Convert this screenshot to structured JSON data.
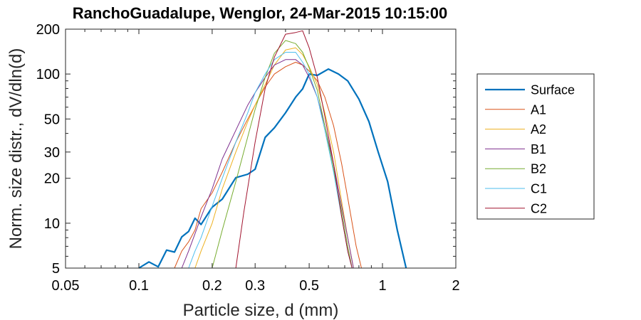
{
  "chart_data": {
    "type": "line",
    "title": "RanchoGuadalupe, Wenglor, 24-Mar-2015 10:15:00",
    "xlabel": "Particle size, d (mm)",
    "ylabel": "Norm. size distr., dV/dln(d)",
    "xscale": "log",
    "yscale": "log",
    "xlim": [
      0.05,
      2
    ],
    "ylim": [
      5,
      200
    ],
    "xticks": [
      0.05,
      0.1,
      0.2,
      0.3,
      0.5,
      1,
      2
    ],
    "xtick_labels": [
      "0.05",
      "0.1",
      "0.2",
      "0.3",
      "0.5",
      "1",
      "2"
    ],
    "yticks": [
      5,
      10,
      20,
      30,
      50,
      100,
      200
    ],
    "ytick_labels": [
      "5",
      "10",
      "20",
      "30",
      "50",
      "100",
      "200"
    ],
    "grid": false,
    "legend_position": "outside-right",
    "series": [
      {
        "name": "Surface",
        "color": "#0072BD",
        "width": 2.2,
        "x": [
          0.1,
          0.11,
          0.12,
          0.13,
          0.14,
          0.15,
          0.16,
          0.17,
          0.18,
          0.2,
          0.22,
          0.25,
          0.28,
          0.3,
          0.33,
          0.36,
          0.4,
          0.44,
          0.47,
          0.5,
          0.54,
          0.6,
          0.66,
          0.72,
          0.8,
          0.88,
          0.96,
          1.05,
          1.15,
          1.25
        ],
        "y": [
          5,
          5.5,
          5.1,
          6.6,
          6.4,
          8.1,
          8.8,
          10.8,
          9.8,
          12.8,
          14.5,
          20.2,
          21.3,
          23.0,
          37.6,
          43.6,
          55.0,
          70.0,
          79.5,
          100,
          98,
          108,
          100,
          90,
          68,
          48,
          30,
          19,
          9,
          5
        ]
      },
      {
        "name": "A1",
        "color": "#D95319",
        "width": 1,
        "x": [
          0.14,
          0.15,
          0.16,
          0.17,
          0.18,
          0.2,
          0.22,
          0.25,
          0.28,
          0.3,
          0.33,
          0.36,
          0.4,
          0.44,
          0.47,
          0.5,
          0.54,
          0.58,
          0.63,
          0.68,
          0.73,
          0.78,
          0.82
        ],
        "y": [
          5,
          6.5,
          7.5,
          9,
          12.5,
          16,
          22,
          35,
          50,
          62,
          82,
          100,
          112,
          120,
          115,
          105,
          90,
          70,
          45,
          25,
          13,
          7,
          5
        ]
      },
      {
        "name": "A2",
        "color": "#EDB120",
        "width": 1,
        "x": [
          0.17,
          0.18,
          0.2,
          0.22,
          0.25,
          0.28,
          0.3,
          0.33,
          0.36,
          0.4,
          0.44,
          0.47,
          0.5,
          0.54,
          0.58,
          0.63,
          0.68,
          0.72,
          0.76
        ],
        "y": [
          5,
          6.5,
          10,
          17,
          30,
          48,
          62,
          85,
          115,
          145,
          150,
          135,
          112,
          85,
          55,
          30,
          14,
          8,
          5
        ]
      },
      {
        "name": "B1",
        "color": "#7E2F8E",
        "width": 1,
        "x": [
          0.15,
          0.16,
          0.17,
          0.18,
          0.2,
          0.22,
          0.25,
          0.28,
          0.3,
          0.33,
          0.36,
          0.4,
          0.44,
          0.47,
          0.5,
          0.54,
          0.58,
          0.63,
          0.68,
          0.72,
          0.76
        ],
        "y": [
          5,
          6.5,
          8.5,
          11,
          17,
          27,
          42,
          62,
          75,
          95,
          115,
          125,
          125,
          115,
          95,
          70,
          45,
          25,
          13,
          8,
          5
        ]
      },
      {
        "name": "B2",
        "color": "#77AC30",
        "width": 1,
        "x": [
          0.2,
          0.22,
          0.25,
          0.28,
          0.3,
          0.33,
          0.36,
          0.4,
          0.44,
          0.47,
          0.5,
          0.54,
          0.58,
          0.63,
          0.68,
          0.72,
          0.75
        ],
        "y": [
          5,
          9,
          19,
          38,
          58,
          95,
          138,
          168,
          160,
          140,
          110,
          78,
          45,
          23,
          12,
          7,
          5
        ]
      },
      {
        "name": "C1",
        "color": "#4DBEEE",
        "width": 1,
        "x": [
          0.16,
          0.17,
          0.18,
          0.2,
          0.22,
          0.25,
          0.28,
          0.3,
          0.33,
          0.36,
          0.4,
          0.44,
          0.47,
          0.5,
          0.54,
          0.58,
          0.63,
          0.68,
          0.72,
          0.75
        ],
        "y": [
          5,
          6.5,
          8,
          13,
          20,
          35,
          55,
          75,
          100,
          125,
          140,
          140,
          120,
          100,
          70,
          42,
          22,
          11,
          6.5,
          5
        ]
      },
      {
        "name": "C2",
        "color": "#A2142F",
        "width": 1,
        "x": [
          0.25,
          0.27,
          0.3,
          0.33,
          0.36,
          0.4,
          0.44,
          0.47,
          0.5,
          0.54,
          0.58,
          0.63,
          0.68,
          0.72,
          0.75
        ],
        "y": [
          5,
          12,
          35,
          80,
          130,
          185,
          190,
          195,
          150,
          95,
          52,
          25,
          11,
          6.5,
          5
        ]
      }
    ]
  }
}
